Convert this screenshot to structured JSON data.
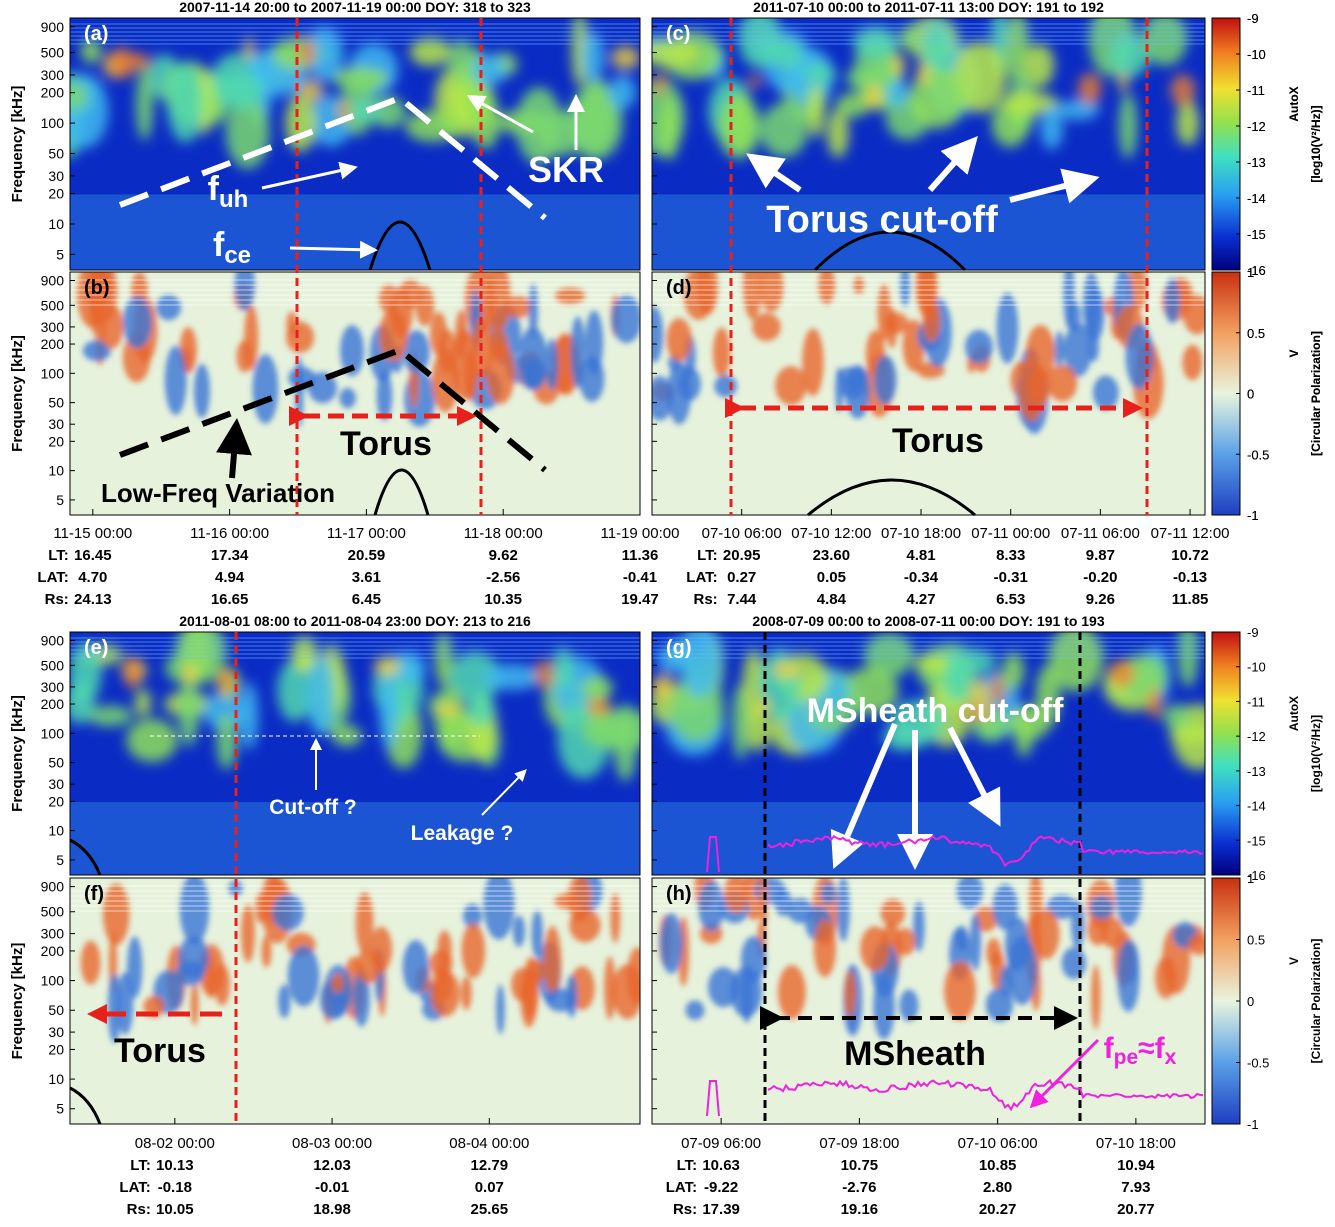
{
  "yaxis": {
    "label": "Frequency [kHz]",
    "ylim": [
      3.5,
      1100
    ],
    "yticks": [
      5,
      10,
      20,
      30,
      50,
      100,
      200,
      300,
      500,
      900
    ]
  },
  "colorbars": {
    "autox": {
      "label": "AutoX",
      "unit": "[log10(V²/Hz)]",
      "lim": [
        -16,
        -9
      ],
      "ticks": [
        -9,
        -10,
        -11,
        -12,
        -13,
        -14,
        -15,
        -16
      ]
    },
    "v": {
      "label": "V",
      "unit": "[Circular Polarization]",
      "lim": [
        -1,
        1
      ],
      "ticks": [
        1,
        0.5,
        0,
        -0.5,
        -1
      ]
    }
  },
  "groups": [
    {
      "title": "2007-11-14 20:00 to 2007-11-19 00:00 DOY: 318 to 323",
      "panels": [
        {
          "letter": "(a)",
          "kind": "autox"
        },
        {
          "letter": "(b)",
          "kind": "v"
        }
      ],
      "xtick_labels": [
        "11-15 00:00",
        "11-16 00:00",
        "11-17 00:00",
        "11-18 00:00",
        "11-19 00:00"
      ],
      "ephemeris": [
        {
          "label": "LT:",
          "values": [
            "16.45",
            "17.34",
            "20.59",
            "9.62",
            "11.36"
          ]
        },
        {
          "label": "LAT:",
          "values": [
            "4.70",
            "4.94",
            "3.61",
            "-2.56",
            "-0.41"
          ]
        },
        {
          "label": "Rs:",
          "values": [
            "24.13",
            "16.65",
            "6.45",
            "10.35",
            "19.47"
          ]
        }
      ],
      "annotations": [
        {
          "parts": [
            "f",
            "uh"
          ]
        },
        {
          "parts": [
            "f",
            "ce"
          ]
        },
        {
          "parts": [
            "SKR"
          ]
        },
        {
          "parts": [
            "Torus"
          ]
        },
        {
          "parts": [
            "Low-Freq Variation"
          ]
        }
      ]
    },
    {
      "title": "2011-07-10 00:00 to 2011-07-11 13:00 DOY: 191 to 192",
      "panels": [
        {
          "letter": "(c)",
          "kind": "autox"
        },
        {
          "letter": "(d)",
          "kind": "v"
        }
      ],
      "xtick_labels": [
        "07-10 06:00",
        "07-10 12:00",
        "07-10 18:00",
        "07-11 00:00",
        "07-11 06:00",
        "07-11 12:00"
      ],
      "ephemeris": [
        {
          "label": "LT:",
          "values": [
            "20.95",
            "23.60",
            "4.81",
            "8.33",
            "9.87",
            "10.72"
          ]
        },
        {
          "label": "LAT:",
          "values": [
            "0.27",
            "0.05",
            "-0.34",
            "-0.31",
            "-0.20",
            "-0.13"
          ]
        },
        {
          "label": "Rs:",
          "values": [
            "7.44",
            "4.84",
            "4.27",
            "6.53",
            "9.26",
            "11.85"
          ]
        }
      ],
      "annotations": [
        {
          "parts": [
            "Torus cut-off"
          ]
        },
        {
          "parts": [
            "Torus"
          ]
        }
      ]
    },
    {
      "title": "2011-08-01 08:00 to 2011-08-04 23:00 DOY: 213 to 216",
      "panels": [
        {
          "letter": "(e)",
          "kind": "autox"
        },
        {
          "letter": "(f)",
          "kind": "v"
        }
      ],
      "xtick_labels": [
        "08-02 00:00",
        "08-03 00:00",
        "08-04 00:00"
      ],
      "ephemeris": [
        {
          "label": "LT:",
          "values": [
            "10.13",
            "12.03",
            "12.79"
          ]
        },
        {
          "label": "LAT:",
          "values": [
            "-0.18",
            "-0.01",
            "0.07"
          ]
        },
        {
          "label": "Rs:",
          "values": [
            "10.05",
            "18.98",
            "25.65"
          ]
        }
      ],
      "annotations": [
        {
          "parts": [
            "Cut-off ?"
          ]
        },
        {
          "parts": [
            "Leakage ?"
          ]
        },
        {
          "parts": [
            "Torus"
          ]
        }
      ]
    },
    {
      "title": "2008-07-09 00:00 to 2008-07-11 00:00 DOY: 191 to 193",
      "panels": [
        {
          "letter": "(g)",
          "kind": "autox"
        },
        {
          "letter": "(h)",
          "kind": "v"
        }
      ],
      "xtick_labels": [
        "07-09 06:00",
        "07-09 18:00",
        "07-10 06:00",
        "07-10 18:00"
      ],
      "ephemeris": [
        {
          "label": "LT:",
          "values": [
            "10.63",
            "10.75",
            "10.85",
            "10.94"
          ]
        },
        {
          "label": "LAT:",
          "values": [
            "-9.22",
            "-2.76",
            "2.80",
            "7.93"
          ]
        },
        {
          "label": "Rs:",
          "values": [
            "17.39",
            "19.16",
            "20.27",
            "20.77"
          ]
        }
      ],
      "annotations": [
        {
          "parts": [
            "MSheath cut-off"
          ]
        },
        {
          "parts": [
            "MSheath"
          ]
        },
        {
          "parts": [
            "f",
            "pe",
            "≈f",
            "x"
          ]
        }
      ]
    }
  ]
}
